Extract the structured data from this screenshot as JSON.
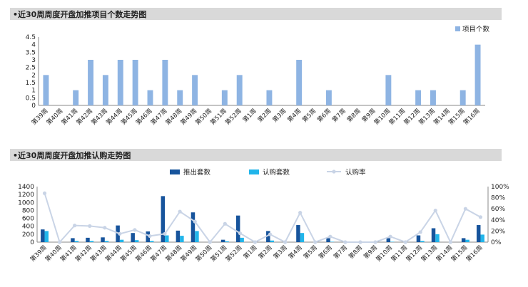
{
  "sections": [
    {
      "title": "•近30周周度开盘加推项目个数走势图"
    },
    {
      "title": "•近30周周度开盘加推认购走势图"
    }
  ],
  "colors": {
    "bar1": "#8eb4e3",
    "pushed": "#17549c",
    "subscribed": "#21b5ea",
    "rate": "#c9d4e6",
    "header": "#d9d9d9"
  },
  "chart_data": [
    {
      "type": "bar",
      "categories": [
        "第39周",
        "第40周",
        "第41周",
        "第42周",
        "第43周",
        "第44周",
        "第45周",
        "第46周",
        "第47周",
        "第48周",
        "第49周",
        "第50周",
        "第51周",
        "第52周",
        "第1周",
        "第2周",
        "第3周",
        "第4周",
        "第5周",
        "第6周",
        "第7周",
        "第8周",
        "第9周",
        "第10周",
        "第11周",
        "第12周",
        "第13周",
        "第14周",
        "第15周",
        "第16周"
      ],
      "series": [
        {
          "name": "项目个数",
          "values": [
            2,
            0,
            1,
            3,
            2,
            3,
            3,
            1,
            3,
            1,
            2,
            0,
            1,
            2,
            0,
            1,
            0,
            3,
            0,
            1,
            0,
            0,
            0,
            2,
            0,
            1,
            1,
            0,
            1,
            4
          ]
        }
      ],
      "yticks": [
        "0",
        "0.5",
        "1",
        "1.5",
        "2",
        "2.5",
        "3",
        "3.5",
        "4",
        "4.5"
      ],
      "ylim": [
        0,
        4.5
      ],
      "legend_position": "top-right"
    },
    {
      "type": "bar+line",
      "categories": [
        "第39周",
        "第40周",
        "第41周",
        "第42周",
        "第43周",
        "第44周",
        "第45周",
        "第46周",
        "第47周",
        "第48周",
        "第49周",
        "第50周",
        "第51周",
        "第52周",
        "第1周",
        "第2周",
        "第3周",
        "第4周",
        "第5周",
        "第6周",
        "第7周",
        "第8周",
        "第9周",
        "第10周",
        "第11周",
        "第12周",
        "第13周",
        "第14周",
        "第15周",
        "第16周"
      ],
      "series": [
        {
          "name": "推出套数",
          "axis": "left",
          "values": [
            320,
            0,
            100,
            110,
            120,
            420,
            230,
            270,
            1160,
            290,
            750,
            0,
            60,
            670,
            0,
            280,
            0,
            430,
            0,
            100,
            0,
            0,
            0,
            100,
            0,
            170,
            350,
            0,
            100,
            430
          ]
        },
        {
          "name": "认购套数",
          "axis": "left",
          "values": [
            280,
            0,
            30,
            30,
            30,
            60,
            50,
            30,
            170,
            160,
            280,
            0,
            20,
            110,
            0,
            40,
            0,
            230,
            0,
            10,
            0,
            0,
            0,
            10,
            0,
            30,
            200,
            0,
            60,
            190
          ]
        },
        {
          "name": "认购率",
          "axis": "right",
          "type": "line",
          "values": [
            88,
            0,
            30,
            29,
            26,
            15,
            22,
            11,
            15,
            55,
            37,
            0,
            33,
            16,
            0,
            14,
            0,
            53,
            0,
            10,
            0,
            0,
            0,
            10,
            0,
            18,
            57,
            0,
            60,
            45
          ]
        }
      ],
      "yticks_left": [
        "0",
        "200",
        "400",
        "600",
        "800",
        "1000",
        "1200",
        "1400"
      ],
      "ylim_left": [
        0,
        1400
      ],
      "yticks_right": [
        "0%",
        "20%",
        "40%",
        "60%",
        "80%",
        "100%"
      ],
      "ylim_right": [
        0,
        100
      ],
      "legend_position": "top"
    }
  ]
}
